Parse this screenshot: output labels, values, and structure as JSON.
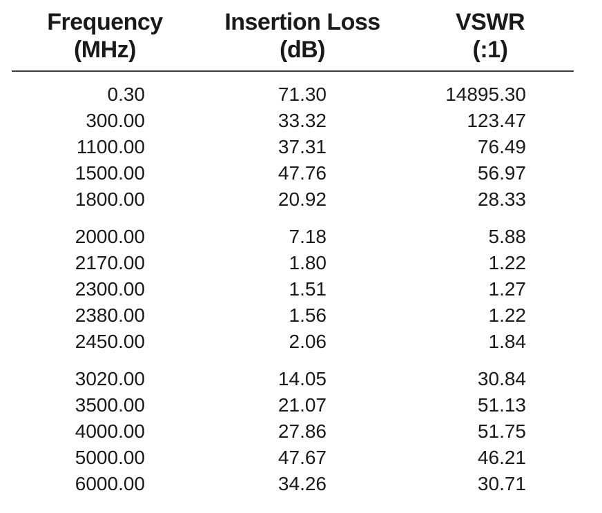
{
  "page": {
    "background": "#ffffff",
    "text_color": "#1a1a1a",
    "rule_color": "#3c3c3c"
  },
  "table": {
    "columns": [
      {
        "key": "frequency-mhz",
        "label": "Frequency",
        "unit": "(MHz)"
      },
      {
        "key": "insertion-loss-db",
        "label": "Insertion Loss",
        "unit": "(dB)"
      },
      {
        "key": "vswr",
        "label": "VSWR",
        "unit": "(:1)"
      }
    ],
    "row_groups": [
      [
        [
          "0.30",
          "71.30",
          "14895.30"
        ],
        [
          "300.00",
          "33.32",
          "123.47"
        ],
        [
          "1100.00",
          "37.31",
          "76.49"
        ],
        [
          "1500.00",
          "47.76",
          "56.97"
        ],
        [
          "1800.00",
          "20.92",
          "28.33"
        ]
      ],
      [
        [
          "2000.00",
          "7.18",
          "5.88"
        ],
        [
          "2170.00",
          "1.80",
          "1.22"
        ],
        [
          "2300.00",
          "1.51",
          "1.27"
        ],
        [
          "2380.00",
          "1.56",
          "1.22"
        ],
        [
          "2450.00",
          "2.06",
          "1.84"
        ]
      ],
      [
        [
          "3020.00",
          "14.05",
          "30.84"
        ],
        [
          "3500.00",
          "21.07",
          "51.13"
        ],
        [
          "4000.00",
          "27.86",
          "51.75"
        ],
        [
          "5000.00",
          "47.67",
          "46.21"
        ],
        [
          "6000.00",
          "34.26",
          "30.71"
        ]
      ]
    ]
  }
}
